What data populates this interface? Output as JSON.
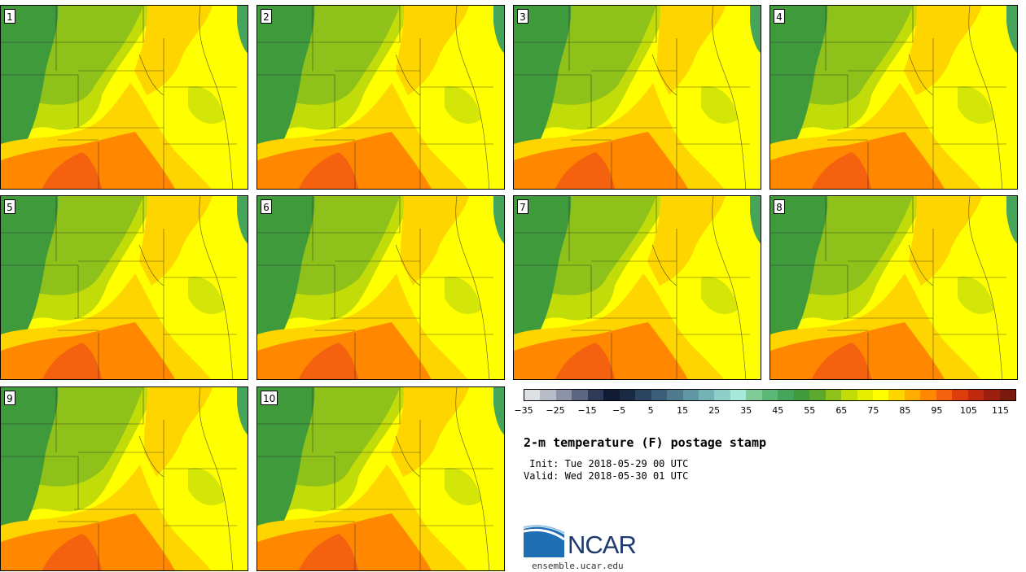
{
  "figure": {
    "title": "2-m temperature (F) postage stamp",
    "init": " Init: Tue 2018-05-29 00 UTC",
    "valid": "Valid: Wed 2018-05-30 01 UTC",
    "logo_text": "NCAR",
    "website": "ensemble.ucar.edu"
  },
  "members": [
    {
      "label": "1"
    },
    {
      "label": "2"
    },
    {
      "label": "3"
    },
    {
      "label": "4"
    },
    {
      "label": "5"
    },
    {
      "label": "6"
    },
    {
      "label": "7"
    },
    {
      "label": "8"
    },
    {
      "label": "9"
    },
    {
      "label": "10"
    }
  ],
  "colorbar": {
    "tick_labels": [
      "−35",
      "−25",
      "−15",
      "−5",
      "5",
      "15",
      "25",
      "35",
      "45",
      "55",
      "65",
      "75",
      "85",
      "95",
      "105",
      "115"
    ],
    "colors": [
      "#dde1e6",
      "#b8bcc6",
      "#8d93a6",
      "#5d6680",
      "#2f3a59",
      "#101a33",
      "#1a2a44",
      "#2b4460",
      "#3c5d77",
      "#4f7a8d",
      "#5f97a4",
      "#73b3b6",
      "#8ed0c8",
      "#a6e8da",
      "#7fcc98",
      "#5cb876",
      "#45a55a",
      "#3f9a3c",
      "#5aa82c",
      "#8ec21a",
      "#c2dc0a",
      "#e8ee00",
      "#ffff00",
      "#ffd500",
      "#ffad00",
      "#ff8800",
      "#f4620f",
      "#dd3d0a",
      "#c02a0c",
      "#9d1f0f",
      "#7a1a0e"
    ]
  },
  "map_colors": {
    "mountain": "#3f9a3c",
    "cool": "#8ec21a",
    "cool_light": "#c2dc0a",
    "mid": "#ffff00",
    "warm": "#ffd500",
    "hot": "#ff8800",
    "hotter": "#f4620f",
    "lake": "#45a55a"
  }
}
